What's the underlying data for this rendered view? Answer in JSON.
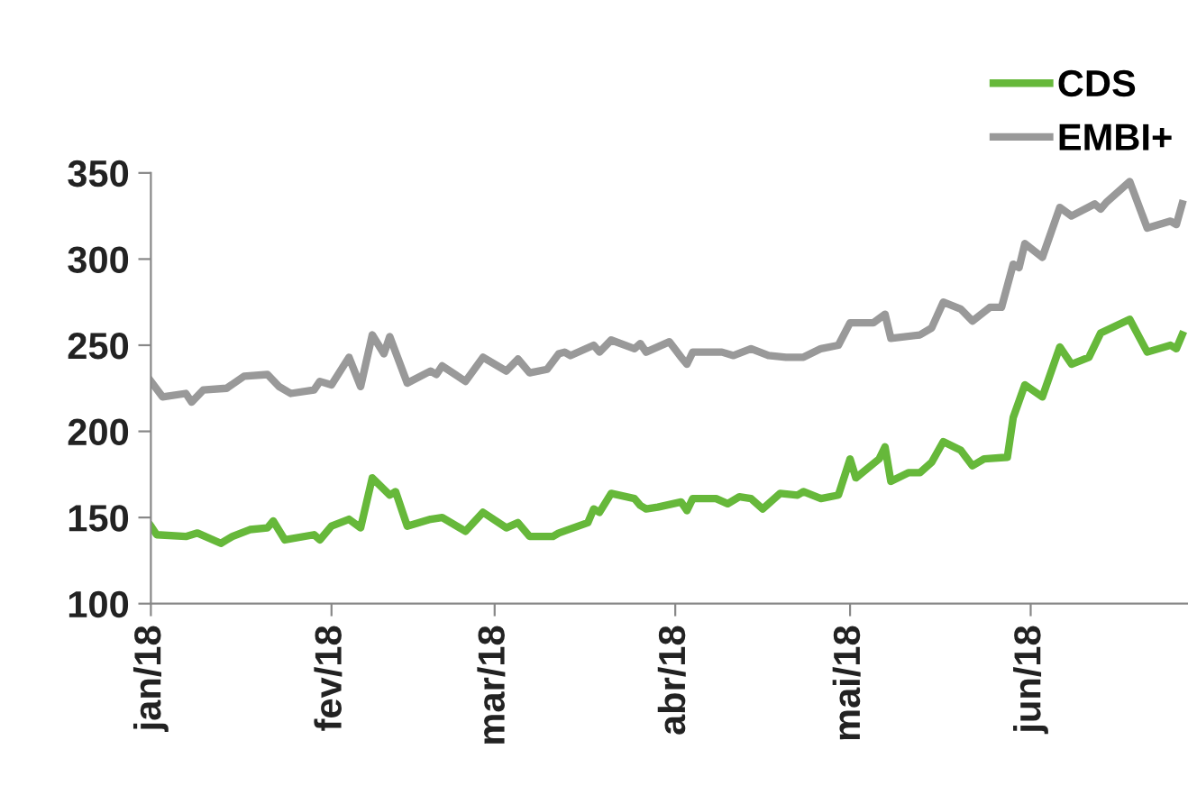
{
  "chart_data": {
    "type": "line",
    "xlim": [
      "2018-01-01",
      "2018-06-28"
    ],
    "xticks": [
      {
        "value": "2018-01-01",
        "label": "jan/18"
      },
      {
        "value": "2018-02-01",
        "label": "fev/18"
      },
      {
        "value": "2018-03-01",
        "label": "mar/18"
      },
      {
        "value": "2018-04-01",
        "label": "abr/18"
      },
      {
        "value": "2018-05-01",
        "label": "mai/18"
      },
      {
        "value": "2018-06-01",
        "label": "jun/18"
      }
    ],
    "ylim": [
      100,
      350
    ],
    "yticks": [
      100,
      150,
      200,
      250,
      300,
      350
    ],
    "grid": false,
    "legend": "top right",
    "marker": "none",
    "line_style": "solid",
    "series": [
      {
        "name": "CDS",
        "color": "#66b83a",
        "x": [
          "2018-01-01",
          "2018-01-02",
          "2018-01-07",
          "2018-01-09",
          "2018-01-13",
          "2018-01-15",
          "2018-01-18",
          "2018-01-21",
          "2018-01-22",
          "2018-01-24",
          "2018-01-29",
          "2018-01-30",
          "2018-02-01",
          "2018-02-04",
          "2018-02-06",
          "2018-02-08",
          "2018-02-11",
          "2018-02-12",
          "2018-02-14",
          "2018-02-18",
          "2018-02-20",
          "2018-02-24",
          "2018-02-27",
          "2018-03-03",
          "2018-03-05",
          "2018-03-07",
          "2018-03-11",
          "2018-03-12",
          "2018-03-17",
          "2018-03-18",
          "2018-03-19",
          "2018-03-21",
          "2018-03-25",
          "2018-03-26",
          "2018-03-27",
          "2018-03-29",
          "2018-04-02",
          "2018-04-03",
          "2018-04-04",
          "2018-04-08",
          "2018-04-10",
          "2018-04-12",
          "2018-04-14",
          "2018-04-16",
          "2018-04-19",
          "2018-04-22",
          "2018-04-23",
          "2018-04-26",
          "2018-04-29",
          "2018-05-01",
          "2018-05-02",
          "2018-05-06",
          "2018-05-07",
          "2018-05-08",
          "2018-05-11",
          "2018-05-13",
          "2018-05-15",
          "2018-05-17",
          "2018-05-20",
          "2018-05-22",
          "2018-05-24",
          "2018-05-28",
          "2018-05-29",
          "2018-05-31",
          "2018-06-03",
          "2018-06-06",
          "2018-06-08",
          "2018-06-11",
          "2018-06-13",
          "2018-06-18",
          "2018-06-21",
          "2018-06-25",
          "2018-06-26",
          "2018-06-27"
        ],
        "values": [
          145,
          140,
          139,
          141,
          135,
          139,
          143,
          144,
          148,
          137,
          140,
          137,
          145,
          149,
          144,
          173,
          163,
          165,
          145,
          149,
          150,
          142,
          153,
          144,
          147,
          139,
          139,
          141,
          147,
          155,
          153,
          164,
          161,
          157,
          155,
          156,
          159,
          154,
          161,
          161,
          158,
          162,
          161,
          155,
          164,
          163,
          165,
          161,
          163,
          184,
          173,
          184,
          191,
          171,
          176,
          176,
          182,
          194,
          189,
          180,
          184,
          185,
          208,
          227,
          220,
          249,
          239,
          243,
          257,
          265,
          246,
          250,
          248,
          256
        ]
      },
      {
        "name": "EMBI+",
        "color": "#999999",
        "x": [
          "2018-01-01",
          "2018-01-03",
          "2018-01-07",
          "2018-01-08",
          "2018-01-10",
          "2018-01-14",
          "2018-01-17",
          "2018-01-21",
          "2018-01-23",
          "2018-01-25",
          "2018-01-29",
          "2018-01-30",
          "2018-02-01",
          "2018-02-04",
          "2018-02-06",
          "2018-02-08",
          "2018-02-10",
          "2018-02-11",
          "2018-02-14",
          "2018-02-18",
          "2018-02-19",
          "2018-02-20",
          "2018-02-24",
          "2018-02-27",
          "2018-03-03",
          "2018-03-05",
          "2018-03-07",
          "2018-03-10",
          "2018-03-12",
          "2018-03-13",
          "2018-03-14",
          "2018-03-18",
          "2018-03-19",
          "2018-03-21",
          "2018-03-25",
          "2018-03-26",
          "2018-03-27",
          "2018-03-31",
          "2018-04-02",
          "2018-04-03",
          "2018-04-04",
          "2018-04-09",
          "2018-04-11",
          "2018-04-14",
          "2018-04-17",
          "2018-04-20",
          "2018-04-23",
          "2018-04-26",
          "2018-04-29",
          "2018-05-01",
          "2018-05-05",
          "2018-05-07",
          "2018-05-08",
          "2018-05-13",
          "2018-05-15",
          "2018-05-17",
          "2018-05-20",
          "2018-05-22",
          "2018-05-25",
          "2018-05-27",
          "2018-05-29",
          "2018-05-30",
          "2018-05-31",
          "2018-06-03",
          "2018-06-06",
          "2018-06-08",
          "2018-06-12",
          "2018-06-13",
          "2018-06-14",
          "2018-06-18",
          "2018-06-21",
          "2018-06-25",
          "2018-06-26",
          "2018-06-27"
        ],
        "values": [
          229,
          220,
          222,
          217,
          224,
          225,
          232,
          233,
          226,
          222,
          224,
          229,
          227,
          243,
          226,
          256,
          245,
          255,
          228,
          235,
          233,
          238,
          229,
          243,
          235,
          242,
          234,
          236,
          245,
          246,
          244,
          250,
          246,
          253,
          248,
          251,
          246,
          252,
          243,
          239,
          246,
          246,
          244,
          248,
          244,
          243,
          243,
          248,
          250,
          263,
          263,
          268,
          254,
          256,
          260,
          275,
          271,
          264,
          272,
          272,
          297,
          295,
          309,
          301,
          330,
          325,
          332,
          329,
          333,
          345,
          318,
          322,
          320,
          332
        ]
      }
    ]
  }
}
